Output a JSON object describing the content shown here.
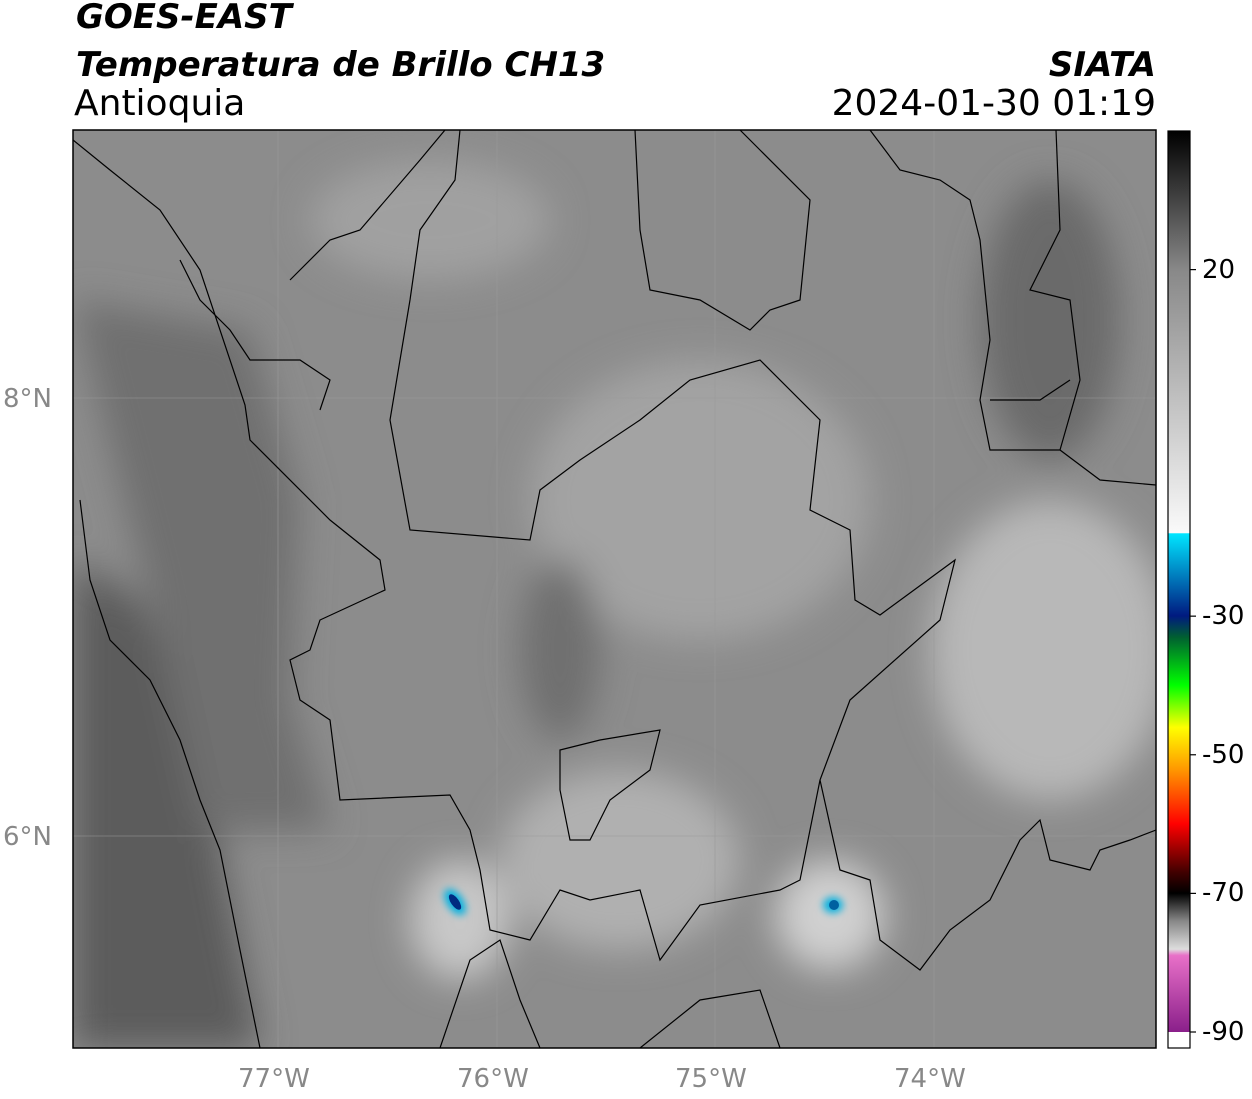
{
  "header": {
    "satellite": "GOES-EAST",
    "product": "Temperatura de Brillo CH13",
    "region": "Antioquia",
    "agency": "SIATA",
    "datetime": "2024-01-30 01:19"
  },
  "map": {
    "lat_labels": [
      "8°N",
      "6°N"
    ],
    "lon_labels": [
      "77°W",
      "76°W",
      "75°W",
      "74°W"
    ]
  },
  "colorbar": {
    "lim": [
      -90,
      40
    ],
    "ticks": [
      20,
      -30,
      -50,
      -70,
      -90
    ]
  }
}
